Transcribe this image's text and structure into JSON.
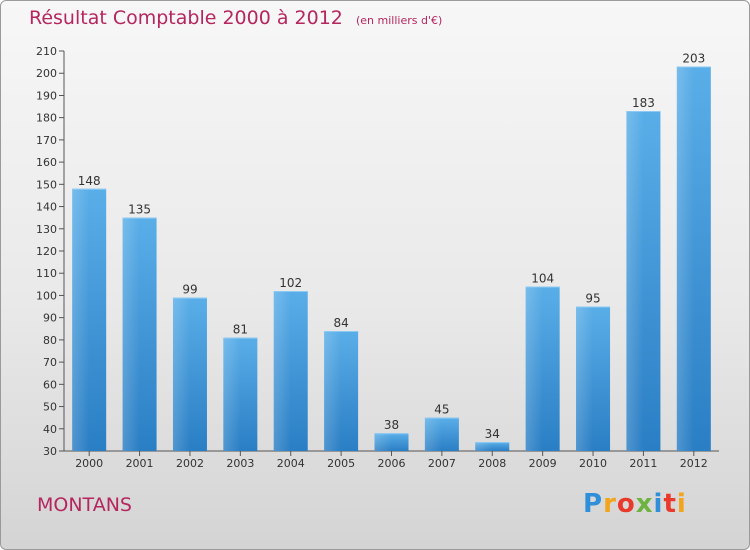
{
  "header": {
    "title": "Résultat Comptable 2000 à 2012",
    "unit": "(en milliers d'€)"
  },
  "footer": {
    "commune": "MONTANS",
    "logo": {
      "letters": [
        "P",
        "r",
        "o",
        "x",
        "i",
        "t",
        "i"
      ]
    }
  },
  "colors": {
    "title": "#b5265e",
    "bar_top": "#5aaee8",
    "bar_bottom": "#2a7ec4",
    "axis": "#555555"
  },
  "chart_data": {
    "type": "bar",
    "title": "Résultat Comptable 2000 à 2012",
    "subtitle": "(en milliers d'€)",
    "categories": [
      "2000",
      "2001",
      "2002",
      "2003",
      "2004",
      "2005",
      "2006",
      "2007",
      "2008",
      "2009",
      "2010",
      "2011",
      "2012"
    ],
    "values": [
      148,
      135,
      99,
      81,
      102,
      84,
      38,
      45,
      34,
      104,
      95,
      183,
      203
    ],
    "xlabel": "",
    "ylabel": "",
    "ylim": [
      30,
      210
    ],
    "yticks": [
      30,
      40,
      50,
      60,
      70,
      80,
      90,
      100,
      110,
      120,
      130,
      140,
      150,
      160,
      170,
      180,
      190,
      200,
      210
    ],
    "grid": false,
    "legend": "none"
  }
}
